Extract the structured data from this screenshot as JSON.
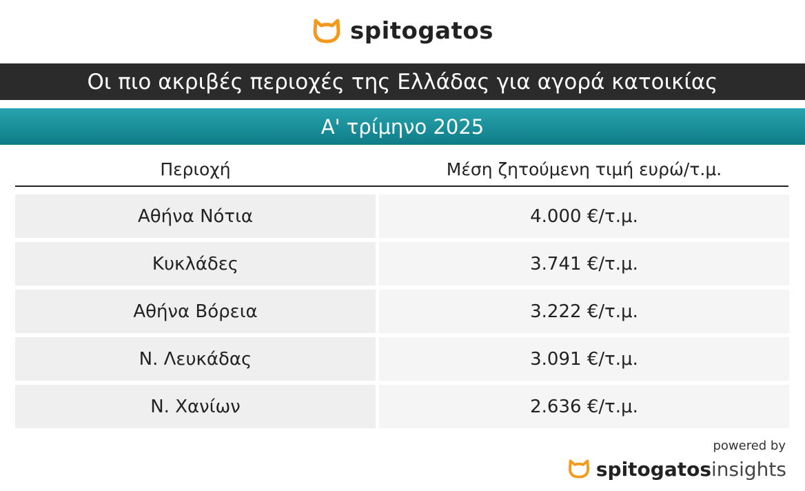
{
  "header": {
    "logo": "spitogatos"
  },
  "title": "Οι πιο ακριβές περιοχές της Ελλάδας για αγορά κατοικίας",
  "subtitle": "Α' τρίμηνο 2025",
  "table": {
    "columns": [
      "Περιοχή",
      "Μέση ζητούμενη τιμή ευρώ/τ.μ."
    ],
    "rows": [
      [
        "Αθήνα Νότια",
        "4.000 €/τ.μ."
      ],
      [
        "Κυκλάδες",
        "3.741 €/τ.μ."
      ],
      [
        "Αθήνα Βόρεια",
        "3.222 €/τ.μ."
      ],
      [
        "Ν. Λευκάδας",
        "3.091 €/τ.μ."
      ],
      [
        "Ν. Χανίων",
        "2.636 €/τ.μ."
      ]
    ]
  },
  "footer": {
    "powered_by": "powered by",
    "brand": "spitogatos",
    "brand_suffix": "insights"
  }
}
